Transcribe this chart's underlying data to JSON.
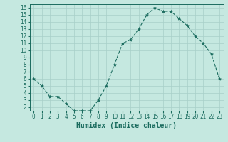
{
  "x": [
    0,
    1,
    2,
    3,
    4,
    5,
    6,
    7,
    8,
    9,
    10,
    11,
    12,
    13,
    14,
    15,
    16,
    17,
    18,
    19,
    20,
    21,
    22,
    23
  ],
  "y": [
    6,
    5,
    3.5,
    3.5,
    2.5,
    1.5,
    1.5,
    1.5,
    3.0,
    5.0,
    8,
    11,
    11.5,
    13,
    15,
    16,
    15.5,
    15.5,
    14.5,
    13.5,
    12,
    11,
    9.5,
    6
  ],
  "line_color": "#1a6b5e",
  "marker": "*",
  "bg_color": "#c5e8e0",
  "grid_color": "#a8cfc8",
  "xlabel": "Humidex (Indice chaleur)",
  "ylim": [
    1.5,
    16.5
  ],
  "xlim": [
    -0.5,
    23.5
  ],
  "yticks": [
    2,
    3,
    4,
    5,
    6,
    7,
    8,
    9,
    10,
    11,
    12,
    13,
    14,
    15,
    16
  ],
  "xticks": [
    0,
    1,
    2,
    3,
    4,
    5,
    6,
    7,
    8,
    9,
    10,
    11,
    12,
    13,
    14,
    15,
    16,
    17,
    18,
    19,
    20,
    21,
    22,
    23
  ],
  "tick_label_fontsize": 5.5,
  "xlabel_fontsize": 7,
  "text_color": "#1a6b5e"
}
